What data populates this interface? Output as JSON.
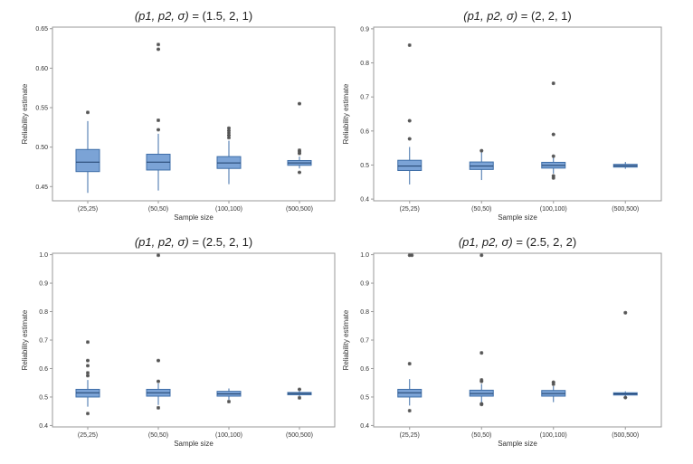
{
  "chart_data": [
    {
      "type": "box",
      "title": {
        "params": "(p1, p2, σ)",
        "value": "(1.5, 2, 1)"
      },
      "xlabel": "Sample size",
      "ylabel": "Reliability estimate",
      "categories": [
        "(25,25)",
        "(50,50)",
        "(100,100)",
        "(500,500)"
      ],
      "yticks": [
        "0.45",
        "0.50",
        "0.55",
        "0.60",
        "0.65"
      ],
      "ylim": [
        0.432,
        0.652
      ],
      "boxes": [
        {
          "q1": 0.469,
          "median": 0.481,
          "q3": 0.497,
          "whisker_low": 0.442,
          "whisker_high": 0.533,
          "outliers": [
            0.544
          ],
          "outlier_style": "star"
        },
        {
          "q1": 0.471,
          "median": 0.481,
          "q3": 0.491,
          "whisker_low": 0.445,
          "whisker_high": 0.517,
          "outliers": [
            0.522,
            0.534,
            0.624,
            0.63
          ],
          "outlier_style": "star"
        },
        {
          "q1": 0.473,
          "median": 0.48,
          "q3": 0.488,
          "whisker_low": 0.453,
          "whisker_high": 0.508,
          "outliers": [
            0.512,
            0.515,
            0.518,
            0.521,
            0.524
          ],
          "outlier_style": "star"
        },
        {
          "q1": 0.477,
          "median": 0.48,
          "q3": 0.483,
          "whisker_low": 0.473,
          "whisker_high": 0.488,
          "outliers": [
            0.468,
            0.492,
            0.494,
            0.496,
            0.555
          ],
          "outlier_style": "star"
        }
      ]
    },
    {
      "type": "box",
      "title": {
        "params": "(p1, p2, σ)",
        "value": "(2, 2, 1)"
      },
      "xlabel": "Sample size",
      "ylabel": "Reliability estimate",
      "categories": [
        "(25,25)",
        "(50,50)",
        "(100,100)",
        "(500,500)"
      ],
      "yticks": [
        "0.4",
        "0.5",
        "0.6",
        "0.7",
        "0.8",
        "0.9"
      ],
      "ylim": [
        0.395,
        0.905
      ],
      "boxes": [
        {
          "q1": 0.484,
          "median": 0.497,
          "q3": 0.514,
          "whisker_low": 0.443,
          "whisker_high": 0.553,
          "outliers": [
            0.577,
            0.63,
            0.852
          ],
          "outlier_style": "star"
        },
        {
          "q1": 0.487,
          "median": 0.497,
          "q3": 0.509,
          "whisker_low": 0.456,
          "whisker_high": 0.538,
          "outliers": [
            0.542
          ],
          "outlier_style": "star"
        },
        {
          "q1": 0.491,
          "median": 0.499,
          "q3": 0.508,
          "whisker_low": 0.475,
          "whisker_high": 0.523,
          "outliers": [
            0.462,
            0.468,
            0.526,
            0.59,
            0.74
          ],
          "outlier_style": "star"
        },
        {
          "q1": 0.494,
          "median": 0.498,
          "q3": 0.502,
          "whisker_low": 0.489,
          "whisker_high": 0.509,
          "outliers": [],
          "outlier_style": "star"
        }
      ]
    },
    {
      "type": "box",
      "title": {
        "params": "(p1, p2, σ)",
        "value": "(2.5, 2, 1)"
      },
      "xlabel": "Sample size",
      "ylabel": "Reliability estimate",
      "categories": [
        "(25,25)",
        "(50,50)",
        "(100,100)",
        "(500,500)"
      ],
      "yticks": [
        "0.4",
        "0.5",
        "0.6",
        "0.7",
        "0.8",
        "0.9",
        "1.0"
      ],
      "ylim": [
        0.395,
        1.005
      ],
      "boxes": [
        {
          "q1": 0.5,
          "median": 0.515,
          "q3": 0.527,
          "whisker_low": 0.466,
          "whisker_high": 0.56,
          "outliers": [
            0.442,
            0.575,
            0.585,
            0.61,
            0.628,
            0.693
          ],
          "outlier_style": "star"
        },
        {
          "q1": 0.503,
          "median": 0.515,
          "q3": 0.527,
          "whisker_low": 0.472,
          "whisker_high": 0.548,
          "outliers": [
            0.462,
            0.555,
            0.628,
            0.998
          ],
          "outlier_style": "star"
        },
        {
          "q1": 0.503,
          "median": 0.511,
          "q3": 0.52,
          "whisker_low": 0.488,
          "whisker_high": 0.53,
          "outliers": [
            0.484
          ],
          "outlier_style": "star"
        },
        {
          "q1": 0.508,
          "median": 0.512,
          "q3": 0.516,
          "whisker_low": 0.501,
          "whisker_high": 0.522,
          "outliers": [
            0.497,
            0.527
          ],
          "outlier_style": "star"
        }
      ]
    },
    {
      "type": "box",
      "title": {
        "params": "(p1, p2, σ)",
        "value": "(2.5, 2, 2)"
      },
      "xlabel": "Sample size",
      "ylabel": "Reliability estimate",
      "categories": [
        "(25,25)",
        "(50,50)",
        "(100,100)",
        "(500,500)"
      ],
      "yticks": [
        "0.4",
        "0.5",
        "0.6",
        "0.7",
        "0.8",
        "0.9",
        "1.0"
      ],
      "ylim": [
        0.395,
        1.005
      ],
      "boxes": [
        {
          "q1": 0.5,
          "median": 0.515,
          "q3": 0.527,
          "whisker_low": 0.47,
          "whisker_high": 0.563,
          "outliers": [
            0.452,
            0.617,
            0.998,
            0.998
          ],
          "outlier_style": "star"
        },
        {
          "q1": 0.503,
          "median": 0.512,
          "q3": 0.524,
          "whisker_low": 0.48,
          "whisker_high": 0.546,
          "outliers": [
            0.474,
            0.476,
            0.555,
            0.56,
            0.655,
            0.998
          ],
          "outlier_style": "star"
        },
        {
          "q1": 0.503,
          "median": 0.512,
          "q3": 0.523,
          "whisker_low": 0.482,
          "whisker_high": 0.538,
          "outliers": [
            0.545,
            0.552
          ],
          "outlier_style": "star"
        },
        {
          "q1": 0.507,
          "median": 0.511,
          "q3": 0.515,
          "whisker_low": 0.502,
          "whisker_high": 0.52,
          "outliers": [
            0.498,
            0.796
          ],
          "outlier_style": "star"
        }
      ]
    }
  ],
  "colors": {
    "box_fill": "#7ba3d6",
    "box_stroke": "#3e6ea8",
    "outlier": "#555555",
    "frame": "#9a9a9a",
    "median": "#1f3f6a"
  }
}
